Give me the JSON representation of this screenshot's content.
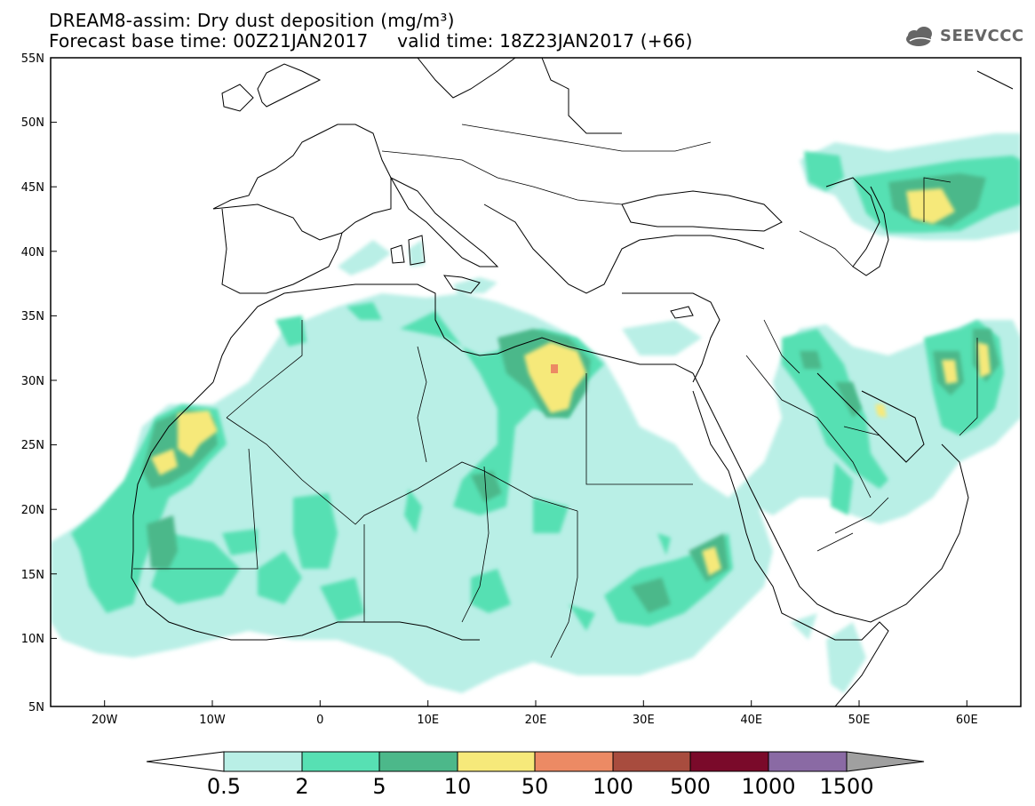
{
  "header": {
    "title_line1": "DREAM8-assim: Dry dust deposition (mg/m³)",
    "title_line2": "Forecast base time: 00Z21JAN2017     valid time: 18Z23JAN2017 (+66)",
    "logo_text": "SEEVCCC"
  },
  "map": {
    "lon_range": [
      -25,
      65
    ],
    "lat_range": [
      5,
      55
    ],
    "lat_labels": [
      "55N",
      "50N",
      "45N",
      "40N",
      "35N",
      "30N",
      "25N",
      "20N",
      "15N",
      "10N",
      "5N"
    ],
    "lon_labels": [
      "20W",
      "10W",
      "0",
      "10E",
      "20E",
      "30E",
      "40E",
      "50E",
      "60E"
    ],
    "ocean_color": "#ffffff",
    "land_color": "#ffffff"
  },
  "colorbar": {
    "labels": [
      "0.5",
      "2",
      "5",
      "10",
      "50",
      "100",
      "500",
      "1000",
      "1500"
    ],
    "colors": [
      "#b9efe6",
      "#57e0b3",
      "#4cb88a",
      "#f6e97a",
      "#ec8a64",
      "#a84c3e",
      "#7a0a2a",
      "#8a6aa4",
      "#a0a0a0"
    ]
  }
}
